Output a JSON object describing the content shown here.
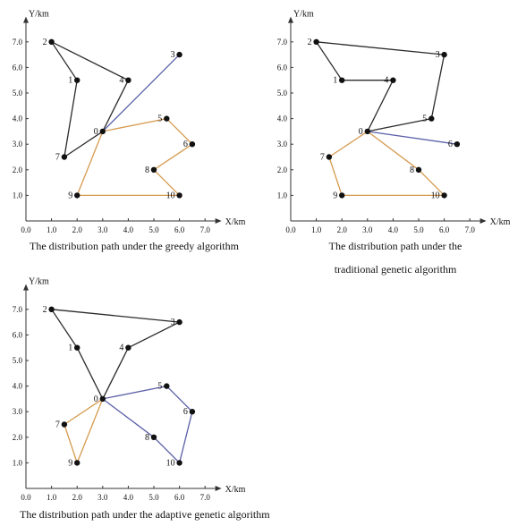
{
  "colors": {
    "axis": "#333333",
    "black_route": "#2b2b2b",
    "orange_route": "#d69a4e",
    "blue_route": "#5b5fa8",
    "node": "#111111"
  },
  "chart_data": [
    {
      "type": "scatter",
      "title": "The distribution path under the greedy algorithm",
      "title_lines": [
        "The distribution path under the greedy algorithm"
      ],
      "xlabel": "X/km",
      "ylabel": "Y/km",
      "xlim": [
        0,
        7.4
      ],
      "ylim": [
        0,
        7.6
      ],
      "grid": false,
      "xticks": [
        "0.0",
        "1.0",
        "2.0",
        "3.0",
        "4.0",
        "5.0",
        "6.0",
        "7.0"
      ],
      "yticks": [
        "1.0",
        "2.0",
        "3.0",
        "4.0",
        "5.0",
        "6.0",
        "7.0"
      ],
      "nodes": [
        {
          "id": "0",
          "x": 3.0,
          "y": 3.5
        },
        {
          "id": "1",
          "x": 2.0,
          "y": 5.5
        },
        {
          "id": "2",
          "x": 1.0,
          "y": 7.0
        },
        {
          "id": "3",
          "x": 6.0,
          "y": 6.5
        },
        {
          "id": "4",
          "x": 4.0,
          "y": 5.5
        },
        {
          "id": "5",
          "x": 5.5,
          "y": 4.0
        },
        {
          "id": "6",
          "x": 6.5,
          "y": 3.0
        },
        {
          "id": "7",
          "x": 1.5,
          "y": 2.5
        },
        {
          "id": "8",
          "x": 5.0,
          "y": 2.0
        },
        {
          "id": "9",
          "x": 2.0,
          "y": 1.0
        },
        {
          "id": "10",
          "x": 6.0,
          "y": 1.0
        }
      ],
      "routes": [
        {
          "color": "black_route",
          "path": [
            "0",
            "7",
            "1",
            "2",
            "4",
            "0"
          ]
        },
        {
          "color": "blue_route",
          "path": [
            "0",
            "3"
          ]
        },
        {
          "color": "orange_route",
          "path": [
            "0",
            "5",
            "6",
            "8",
            "10",
            "9",
            "0"
          ]
        }
      ]
    },
    {
      "type": "scatter",
      "title": "The distribution path under the traditional genetic algorithm",
      "title_lines": [
        "The distribution path under the",
        "traditional genetic algorithm"
      ],
      "xlabel": "X/km",
      "ylabel": "Y/km",
      "xlim": [
        0,
        7.4
      ],
      "ylim": [
        0,
        7.6
      ],
      "grid": false,
      "xticks": [
        "0.0",
        "1.0",
        "2.0",
        "3.0",
        "4.0",
        "5.0",
        "6.0",
        "7.0"
      ],
      "yticks": [
        "1.0",
        "2.0",
        "3.0",
        "4.0",
        "5.0",
        "6.0",
        "7.0"
      ],
      "nodes": [
        {
          "id": "0",
          "x": 3.0,
          "y": 3.5
        },
        {
          "id": "1",
          "x": 2.0,
          "y": 5.5
        },
        {
          "id": "2",
          "x": 1.0,
          "y": 7.0
        },
        {
          "id": "3",
          "x": 6.0,
          "y": 6.5
        },
        {
          "id": "4",
          "x": 4.0,
          "y": 5.5
        },
        {
          "id": "5",
          "x": 5.5,
          "y": 4.0
        },
        {
          "id": "6",
          "x": 6.5,
          "y": 3.0
        },
        {
          "id": "7",
          "x": 1.5,
          "y": 2.5
        },
        {
          "id": "8",
          "x": 5.0,
          "y": 2.0
        },
        {
          "id": "9",
          "x": 2.0,
          "y": 1.0
        },
        {
          "id": "10",
          "x": 6.0,
          "y": 1.0
        }
      ],
      "routes": [
        {
          "color": "black_route",
          "path": [
            "0",
            "4",
            "1",
            "2",
            "3",
            "5",
            "0"
          ]
        },
        {
          "color": "blue_route",
          "path": [
            "0",
            "6"
          ]
        },
        {
          "color": "orange_route",
          "path": [
            "0",
            "7",
            "9",
            "10",
            "8",
            "0"
          ]
        }
      ]
    },
    {
      "type": "scatter",
      "title": "The distribution path under the adaptive genetic algorithm",
      "title_lines": [
        "The distribution path under the adaptive genetic algorithm"
      ],
      "xlabel": "X/km",
      "ylabel": "Y/km",
      "xlim": [
        0,
        7.4
      ],
      "ylim": [
        0,
        7.6
      ],
      "grid": false,
      "xticks": [
        "0.0",
        "1.0",
        "2.0",
        "3.0",
        "4.0",
        "5.0",
        "6.0",
        "7.0"
      ],
      "yticks": [
        "1.0",
        "2.0",
        "3.0",
        "4.0",
        "5.0",
        "6.0",
        "7.0"
      ],
      "nodes": [
        {
          "id": "0",
          "x": 3.0,
          "y": 3.5
        },
        {
          "id": "1",
          "x": 2.0,
          "y": 5.5
        },
        {
          "id": "2",
          "x": 1.0,
          "y": 7.0
        },
        {
          "id": "3",
          "x": 6.0,
          "y": 6.5
        },
        {
          "id": "4",
          "x": 4.0,
          "y": 5.5
        },
        {
          "id": "5",
          "x": 5.5,
          "y": 4.0
        },
        {
          "id": "6",
          "x": 6.5,
          "y": 3.0
        },
        {
          "id": "7",
          "x": 1.5,
          "y": 2.5
        },
        {
          "id": "8",
          "x": 5.0,
          "y": 2.0
        },
        {
          "id": "9",
          "x": 2.0,
          "y": 1.0
        },
        {
          "id": "10",
          "x": 6.0,
          "y": 1.0
        }
      ],
      "routes": [
        {
          "color": "black_route",
          "path": [
            "0",
            "1",
            "2",
            "3",
            "4",
            "0"
          ]
        },
        {
          "color": "blue_route",
          "path": [
            "0",
            "5",
            "6",
            "10",
            "8",
            "0"
          ]
        },
        {
          "color": "orange_route",
          "path": [
            "0",
            "7",
            "9",
            "0"
          ]
        }
      ]
    }
  ]
}
